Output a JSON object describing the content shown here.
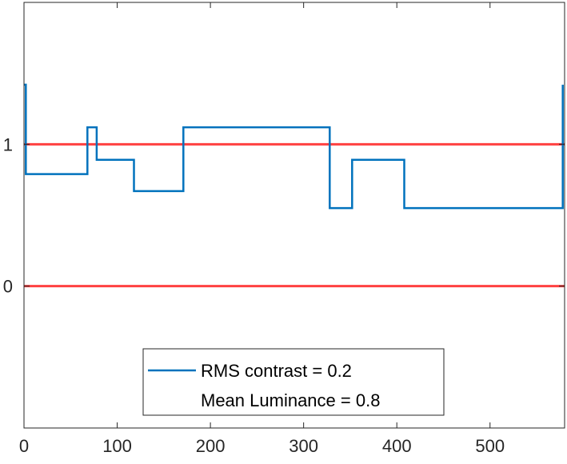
{
  "chart_data": {
    "type": "line",
    "title": "",
    "xlabel": "",
    "ylabel": "",
    "xlim": [
      0,
      580
    ],
    "ylim": [
      -1,
      2
    ],
    "xticks": [
      0,
      100,
      200,
      300,
      400,
      500
    ],
    "yticks": [
      0,
      1
    ],
    "grid": false,
    "legend_placement": "bottom-center",
    "series": [
      {
        "name": "RMS contrast = 0.2",
        "color": "#0072BD",
        "x": [
          0,
          2,
          2,
          68,
          68,
          78,
          78,
          118,
          118,
          171,
          171,
          328,
          328,
          352,
          352,
          408,
          408,
          578,
          578
        ],
        "y": [
          1.42,
          1.42,
          0.79,
          0.79,
          1.12,
          1.12,
          0.89,
          0.89,
          0.67,
          0.67,
          1.12,
          1.12,
          0.55,
          0.55,
          0.89,
          0.89,
          0.55,
          0.55,
          1.42
        ]
      }
    ],
    "reference_lines": [
      {
        "y": 1,
        "color": "#FF4040"
      },
      {
        "y": 0,
        "color": "#FF4040"
      }
    ],
    "legend": {
      "entries": [
        {
          "label": "RMS contrast = 0.2",
          "color": "#0072BD"
        },
        {
          "label": "Mean Luminance = 0.8",
          "color": ""
        }
      ]
    }
  }
}
